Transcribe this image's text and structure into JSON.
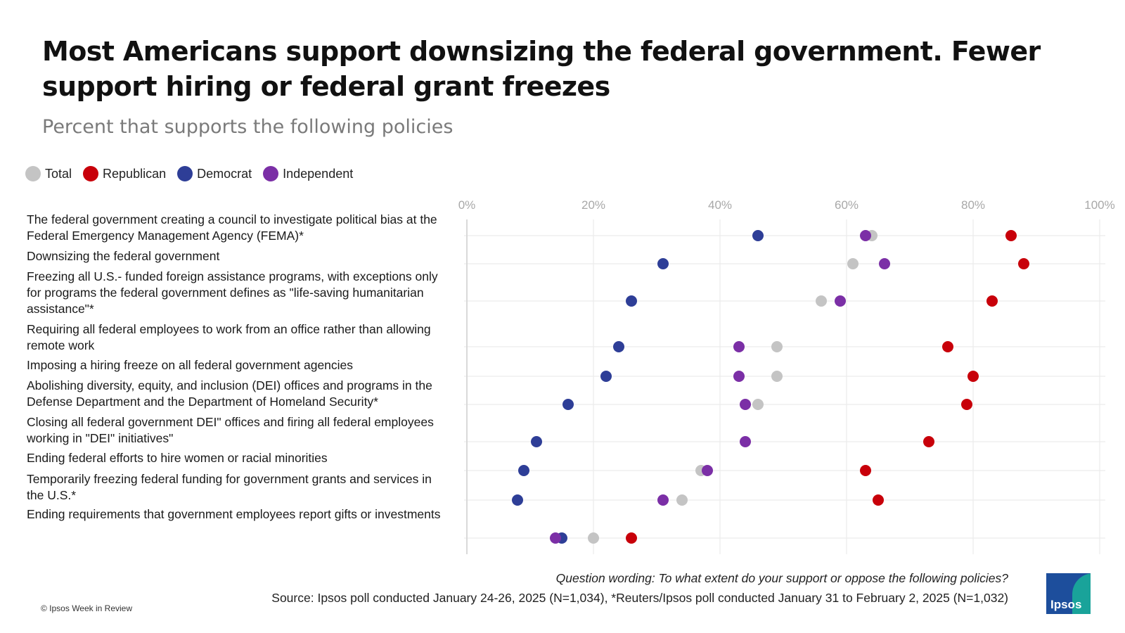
{
  "title": "Most Americans support downsizing the federal government. Fewer support hiring or federal grant freezes",
  "subtitle": "Percent that supports the following policies",
  "legend": [
    {
      "label": "Total",
      "color": "#c4c4c4"
    },
    {
      "label": "Republican",
      "color": "#c8000a"
    },
    {
      "label": "Democrat",
      "color": "#2e3e97"
    },
    {
      "label": "Independent",
      "color": "#7b2fa6"
    }
  ],
  "chart_data": {
    "type": "scatter",
    "xlim": [
      0,
      100
    ],
    "x_ticks": [
      "0%",
      "20%",
      "40%",
      "60%",
      "80%",
      "100%"
    ],
    "grid": true,
    "legend_position": "top-left",
    "categories": [
      "The federal government creating a council to investigate political bias at the Federal Emergency Management Agency (FEMA)*",
      "Downsizing the federal government",
      "Freezing all U.S.- funded foreign assistance programs, with exceptions only for programs the federal government defines as \"life-saving humanitarian assistance\"*",
      "Requiring all federal employees to work from an office rather than allowing remote work",
      "Imposing a hiring freeze on all federal government agencies",
      "Abolishing diversity, equity, and inclusion (DEI) offices and programs in the Defense Department and the Department of Homeland Security*",
      "Closing all federal government DEI\" offices and firing all federal employees working in \"DEI\" initiatives\"",
      "Ending federal efforts to hire women or racial minorities",
      "Temporarily freezing federal funding for government grants and services in the U.S.*",
      "Ending requirements that government employees report gifts or investments"
    ],
    "series": [
      {
        "name": "Total",
        "color": "#c4c4c4",
        "values": [
          64,
          61,
          56,
          49,
          49,
          46,
          null,
          37,
          34,
          20
        ]
      },
      {
        "name": "Republican",
        "color": "#c8000a",
        "values": [
          86,
          88,
          83,
          76,
          80,
          79,
          73,
          63,
          65,
          26
        ]
      },
      {
        "name": "Democrat",
        "color": "#2e3e97",
        "values": [
          46,
          31,
          26,
          24,
          22,
          16,
          11,
          9,
          8,
          15
        ]
      },
      {
        "name": "Independent",
        "color": "#7b2fa6",
        "values": [
          63,
          66,
          59,
          43,
          43,
          44,
          44,
          38,
          31,
          14
        ]
      }
    ]
  },
  "footer": {
    "question": "Question wording: To what extent do your support or oppose the following policies?",
    "source": "Source: Ipsos poll conducted January 24-26, 2025 (N=1,034), *Reuters/Ipsos poll conducted January 31 to February 2, 2025 (N=1,032)",
    "copyright": "© Ipsos Week in Review",
    "logo_text": "Ipsos"
  }
}
